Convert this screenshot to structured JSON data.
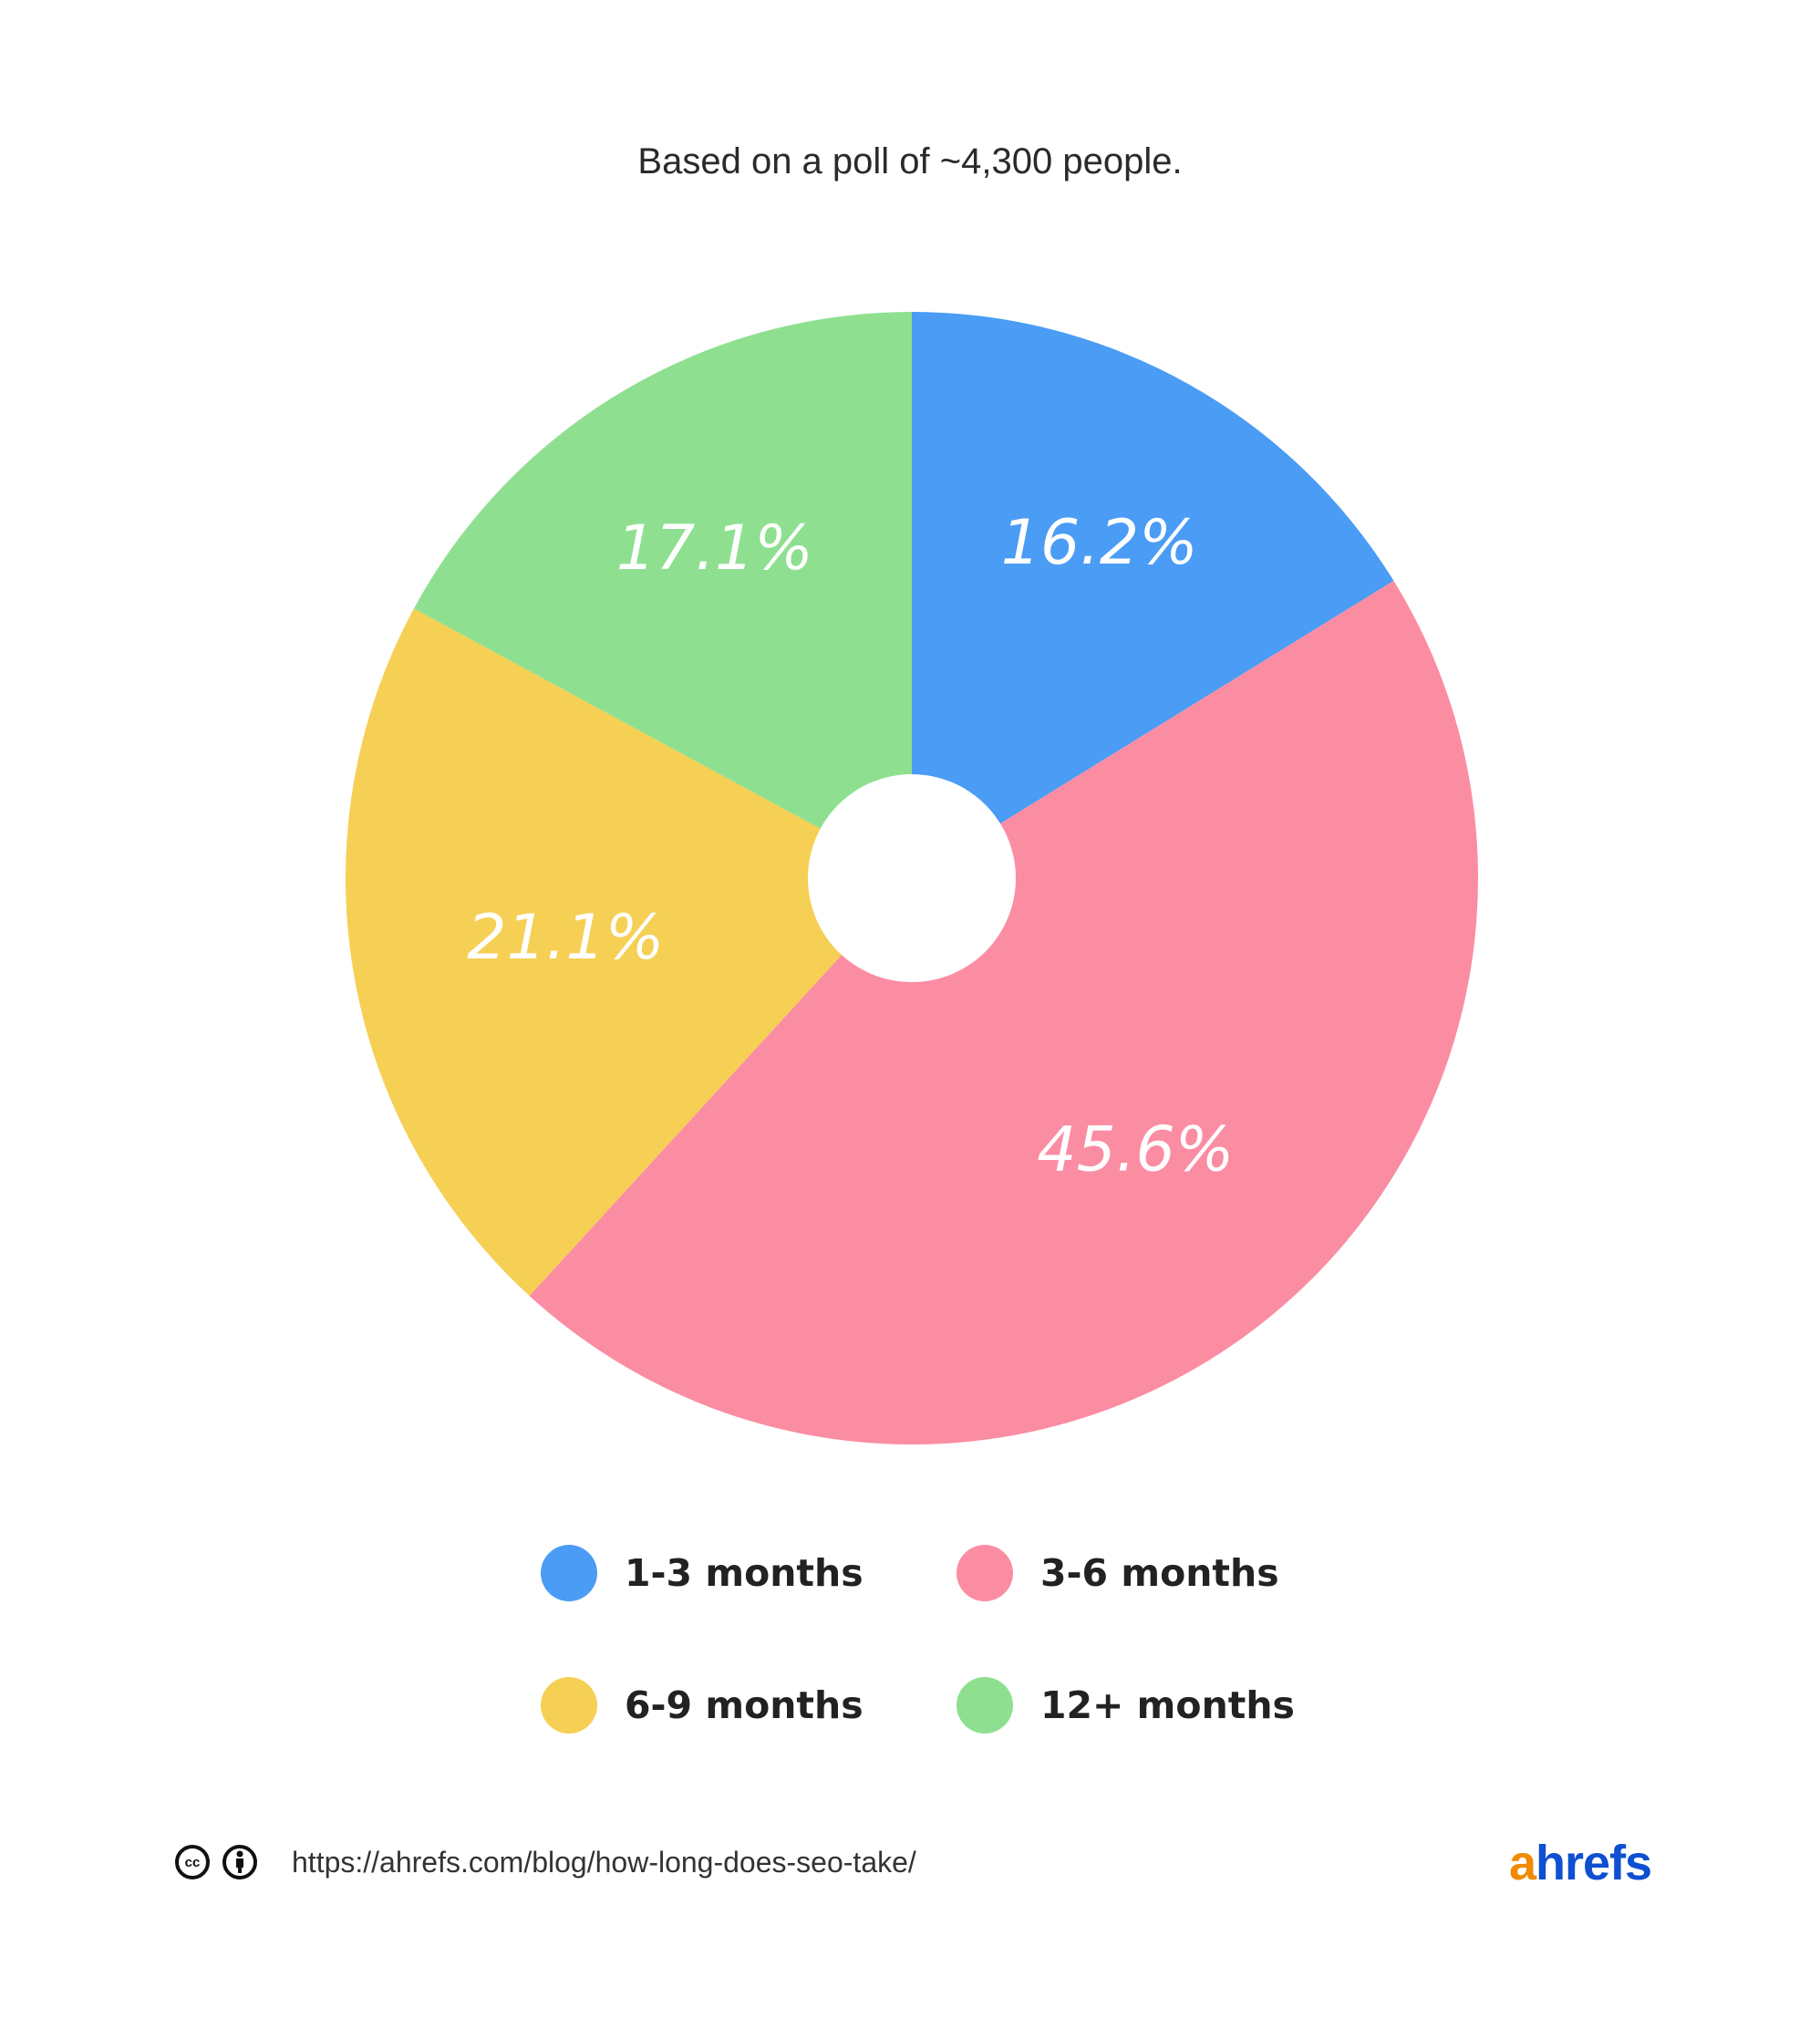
{
  "chart_data": {
    "type": "pie",
    "subtitle": "Based on a poll of ~4,300 people.",
    "donut": true,
    "start": "top, clockwise",
    "slices": [
      {
        "name": "1-3 months",
        "value": 16.2,
        "label": "16.2%",
        "color": "#4a9cf5"
      },
      {
        "name": "3-6 months",
        "value": 45.6,
        "label": "45.6%",
        "color": "#fb8da3"
      },
      {
        "name": "6-9 months",
        "value": 21.1,
        "label": "21.1%",
        "color": "#f6cf55"
      },
      {
        "name": "12+ months",
        "value": 17.1,
        "label": "17.1%",
        "color": "#8ee090"
      }
    ],
    "legend_placement": "bottom"
  },
  "footer": {
    "license_icons": [
      "creative-commons-icon",
      "attribution-icon"
    ],
    "cc_text": "cc",
    "url": "https://ahrefs.com/blog/how-long-does-seo-take/",
    "logo": "ahrefs",
    "logo_colors": {
      "a": "#f08a00",
      "hrefs": "#0f4fd1"
    }
  }
}
